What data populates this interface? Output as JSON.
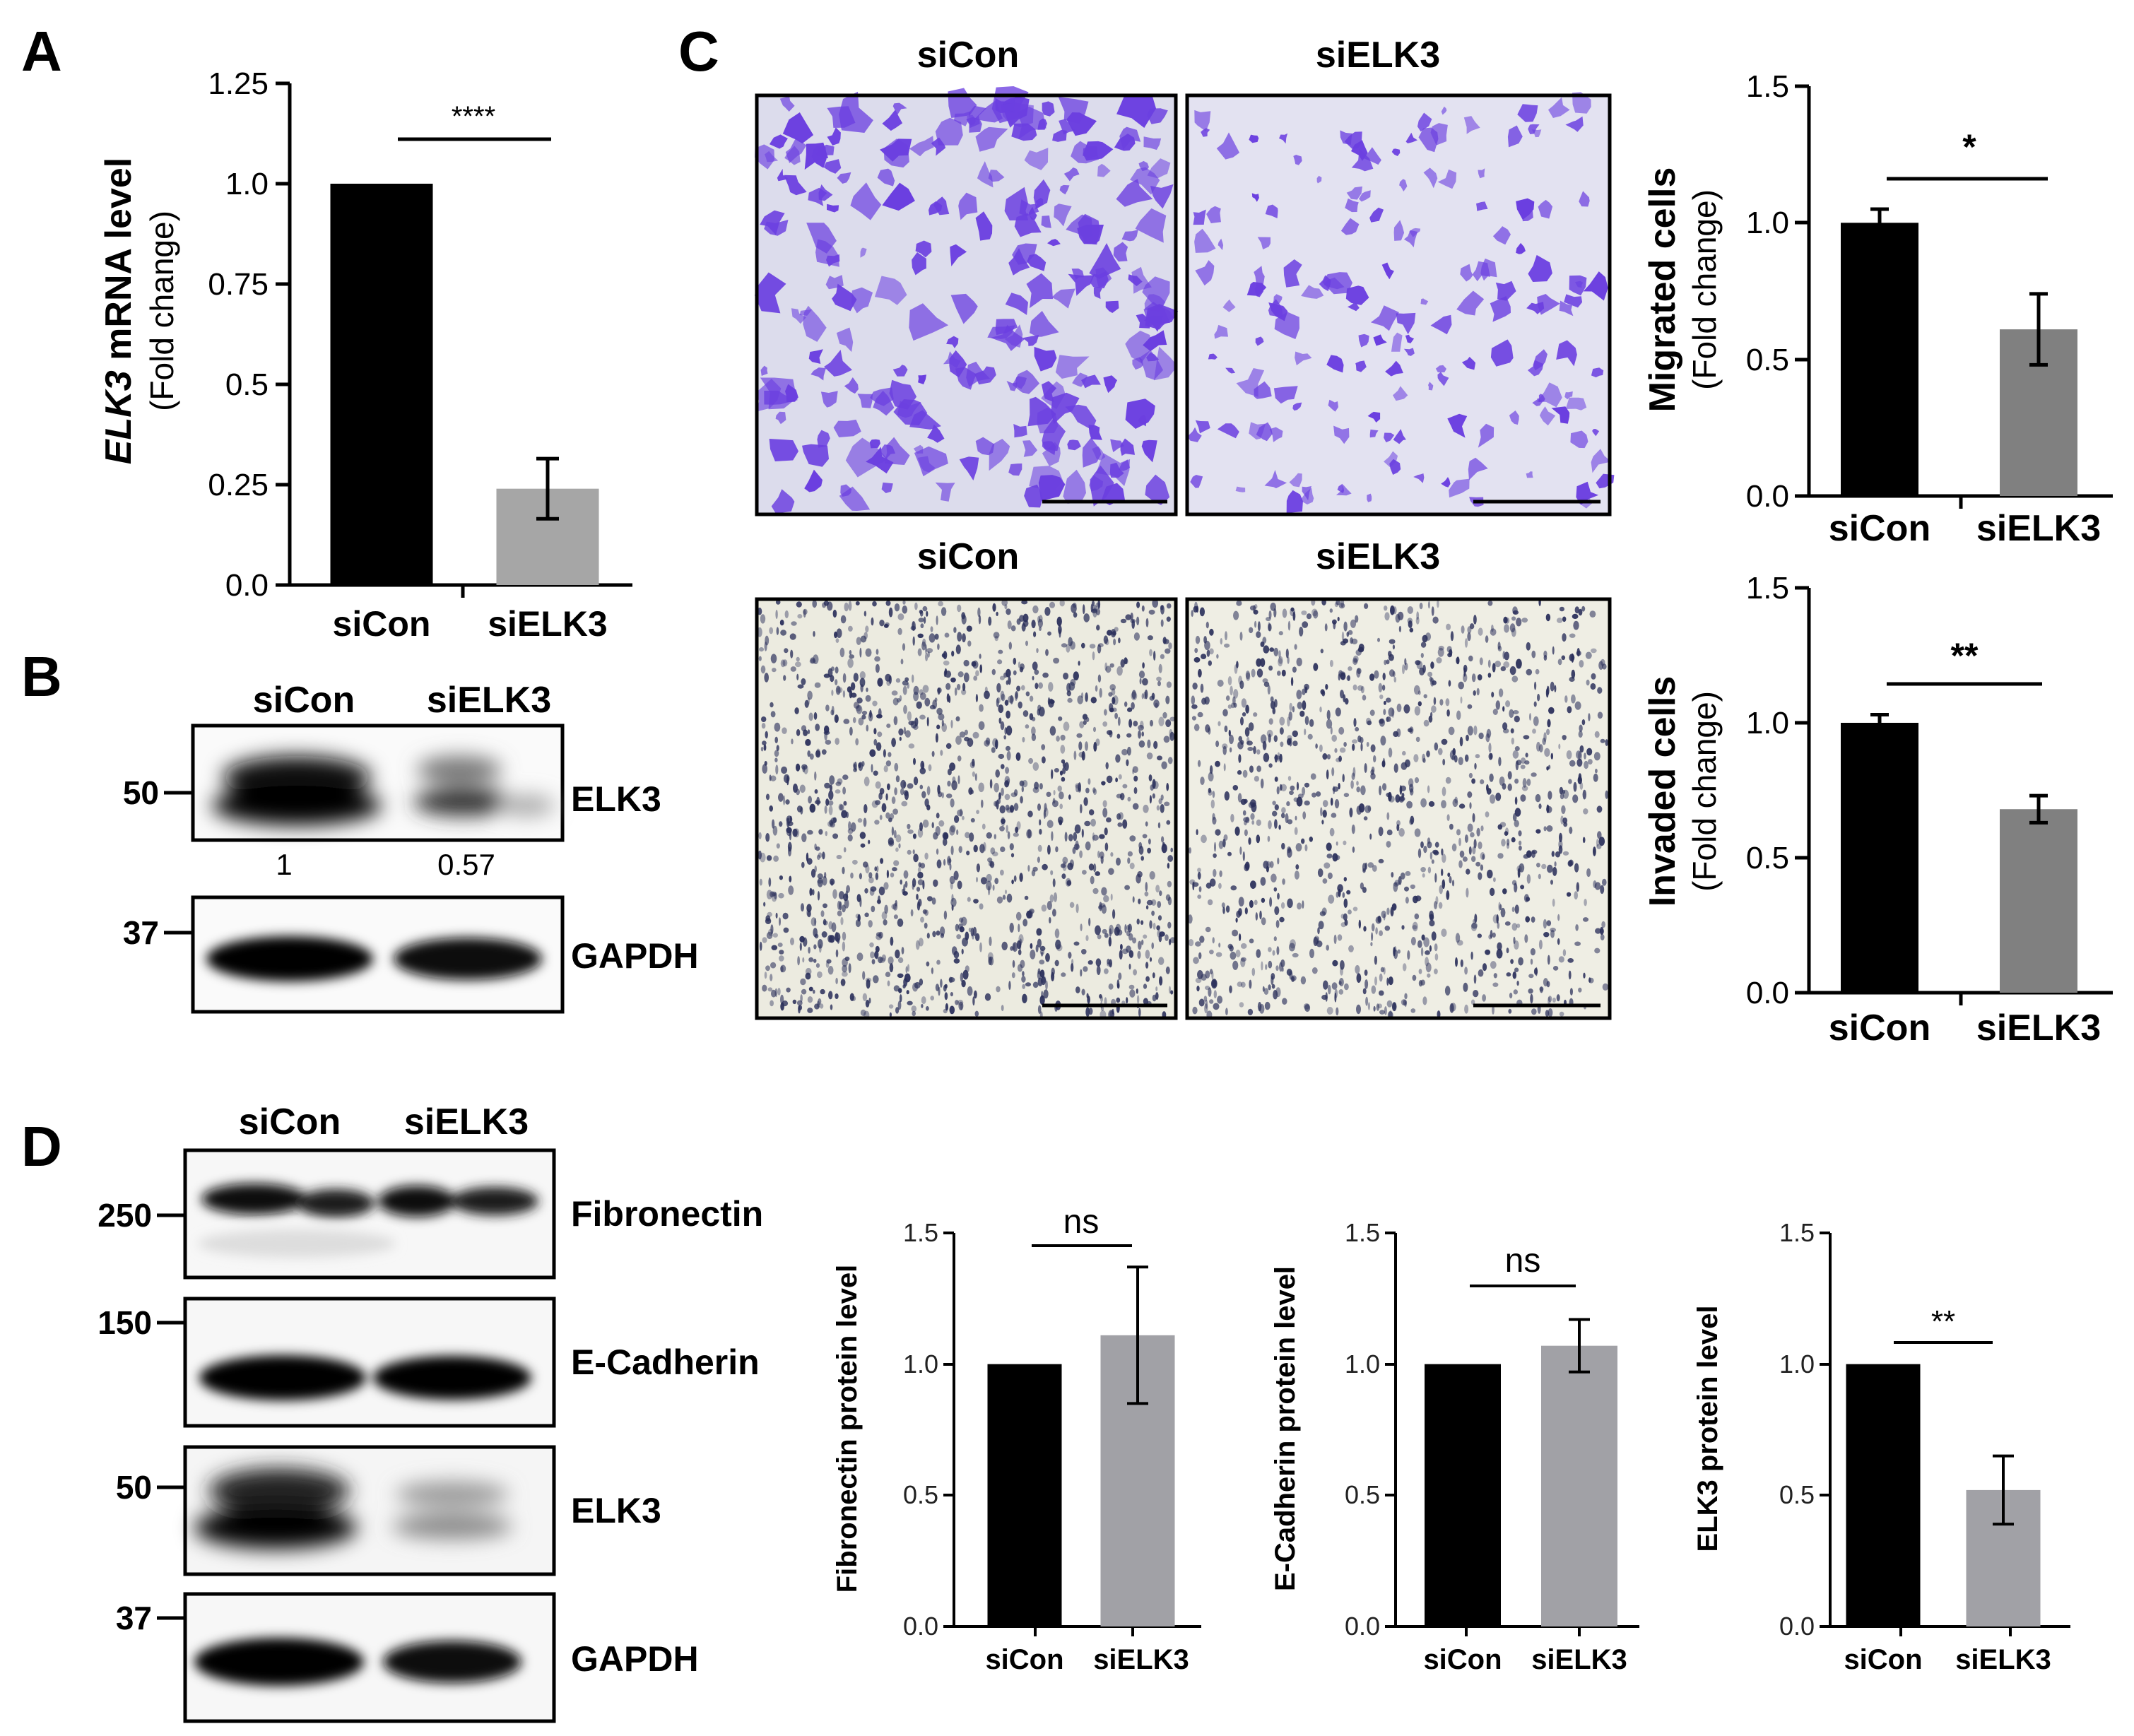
{
  "panel_labels": {
    "a": "A",
    "b": "B",
    "c": "C",
    "d": "D"
  },
  "colors": {
    "black_bar": "#000000",
    "gray_bar_a": "#a6a6a6",
    "gray_bar_c": "#808080",
    "gray_bar_d": "#a1a1a6",
    "migration_stain": "#6b3fe0",
    "invasion_stain": "#2a2f5a"
  },
  "panel_a": {
    "ylabel_italic": "ELK3",
    "ylabel_rest": " mRNA level",
    "ylabel_sub": "(Fold change)",
    "significance": "****",
    "yticks": [
      "0.0",
      "0.25",
      "0.5",
      "0.75",
      "1.0",
      "1.25"
    ]
  },
  "panel_b": {
    "lanes": [
      "siCon",
      "siELK3"
    ],
    "blots": [
      {
        "label": "ELK3",
        "marker": "50"
      },
      {
        "label": "GAPDH",
        "marker": "37"
      }
    ],
    "quant": [
      "1",
      "0.57"
    ]
  },
  "panel_c": {
    "migration_titles": [
      "siCon",
      "siELK3"
    ],
    "invasion_titles": [
      "siCon",
      "siELK3"
    ],
    "migration_chart": {
      "ylabel": "Migrated cells",
      "ylabel_sub": "(Fold change)",
      "significance": "*",
      "yticks": [
        "0.0",
        "0.5",
        "1.0",
        "1.5"
      ]
    },
    "invasion_chart": {
      "ylabel": "Invaded cells",
      "ylabel_sub": "(Fold change)",
      "significance": "**",
      "yticks": [
        "0.0",
        "0.5",
        "1.0",
        "1.5"
      ]
    }
  },
  "panel_d": {
    "lanes": [
      "siCon",
      "siELK3"
    ],
    "blots": [
      {
        "label": "Fibronectin",
        "marker": "250"
      },
      {
        "label": "E-Cadherin",
        "marker": "150"
      },
      {
        "label": "ELK3",
        "marker": "50"
      },
      {
        "label": "GAPDH",
        "marker": "37"
      }
    ],
    "charts": [
      {
        "ylabel": "Fibronectin  protein level",
        "significance": "ns",
        "yticks": [
          "0.0",
          "0.5",
          "1.0",
          "1.5"
        ]
      },
      {
        "ylabel": "E-Cadherin protein level",
        "significance": "ns",
        "yticks": [
          "0.0",
          "0.5",
          "1.0",
          "1.5"
        ]
      },
      {
        "ylabel": "ELK3 protein level",
        "significance": "**",
        "yticks": [
          "0.0",
          "0.5",
          "1.0",
          "1.5"
        ]
      }
    ]
  },
  "chart_data": [
    {
      "id": "A",
      "type": "bar",
      "categories": [
        "siCon",
        "siELK3"
      ],
      "values": [
        1.0,
        0.24
      ],
      "errors": [
        0,
        0.075
      ],
      "ylabel": "ELK3 mRNA level (Fold change)",
      "ylim": [
        0,
        1.25
      ]
    },
    {
      "id": "C-migration",
      "type": "bar",
      "categories": [
        "siCon",
        "siELK3"
      ],
      "values": [
        1.0,
        0.61
      ],
      "errors": [
        0.05,
        0.13
      ],
      "ylabel": "Migrated cells (Fold change)",
      "ylim": [
        0,
        1.5
      ]
    },
    {
      "id": "C-invasion",
      "type": "bar",
      "categories": [
        "siCon",
        "siELK3"
      ],
      "values": [
        1.0,
        0.68
      ],
      "errors": [
        0.03,
        0.05
      ],
      "ylabel": "Invaded cells (Fold change)",
      "ylim": [
        0,
        1.5
      ]
    },
    {
      "id": "D-fibronectin",
      "type": "bar",
      "categories": [
        "siCon",
        "siELK3"
      ],
      "values": [
        1.0,
        1.11
      ],
      "errors": [
        0,
        0.26
      ],
      "ylabel": "Fibronectin  protein level",
      "ylim": [
        0,
        1.5
      ]
    },
    {
      "id": "D-ecadherin",
      "type": "bar",
      "categories": [
        "siCon",
        "siELK3"
      ],
      "values": [
        1.0,
        1.07
      ],
      "errors": [
        0,
        0.1
      ],
      "ylabel": "E-Cadherin protein level",
      "ylim": [
        0,
        1.5
      ]
    },
    {
      "id": "D-elk3",
      "type": "bar",
      "categories": [
        "siCon",
        "siELK3"
      ],
      "values": [
        1.0,
        0.52
      ],
      "errors": [
        0,
        0.13
      ],
      "ylabel": "ELK3 protein level",
      "ylim": [
        0,
        1.5
      ]
    }
  ]
}
